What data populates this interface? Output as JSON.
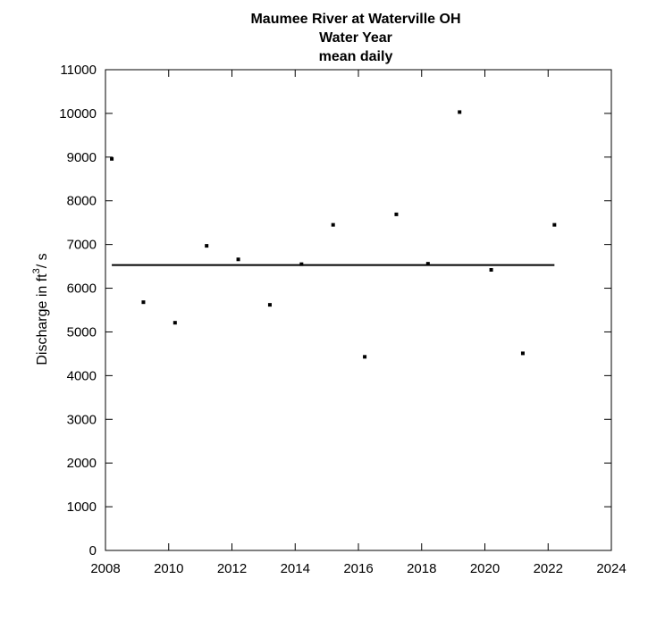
{
  "chart_data": {
    "type": "scatter",
    "title_lines": [
      "Maumee River at Waterville OH",
      "Water Year",
      "mean daily"
    ],
    "xlabel": "",
    "ylabel_prefix": "Discharge in ft",
    "ylabel_superscript": "3",
    "ylabel_suffix": "/ s",
    "xlim": [
      2008,
      2024
    ],
    "ylim": [
      0,
      11000
    ],
    "x_ticks": [
      "2008",
      "2010",
      "2012",
      "2014",
      "2016",
      "2018",
      "2020",
      "2022",
      "2024"
    ],
    "y_ticks": [
      "0",
      "1000",
      "2000",
      "3000",
      "4000",
      "5000",
      "6000",
      "7000",
      "8000",
      "9000",
      "10000",
      "11000"
    ],
    "grid": false,
    "series": [
      {
        "marker": "square",
        "color": "#000000",
        "points": [
          {
            "x": 2008.2,
            "y": 8960
          },
          {
            "x": 2009.2,
            "y": 5680
          },
          {
            "x": 2010.2,
            "y": 5210
          },
          {
            "x": 2011.2,
            "y": 6970
          },
          {
            "x": 2012.2,
            "y": 6660
          },
          {
            "x": 2013.2,
            "y": 5620
          },
          {
            "x": 2014.2,
            "y": 6550
          },
          {
            "x": 2015.2,
            "y": 7450
          },
          {
            "x": 2016.2,
            "y": 4430
          },
          {
            "x": 2017.2,
            "y": 7690
          },
          {
            "x": 2018.2,
            "y": 6560
          },
          {
            "x": 2019.2,
            "y": 10030
          },
          {
            "x": 2020.2,
            "y": 6420
          },
          {
            "x": 2021.2,
            "y": 4510
          },
          {
            "x": 2022.2,
            "y": 7450
          }
        ]
      }
    ],
    "mean_line": {
      "x_start": 2008.2,
      "x_end": 2022.2,
      "y": 6530,
      "color": "#000000"
    }
  }
}
